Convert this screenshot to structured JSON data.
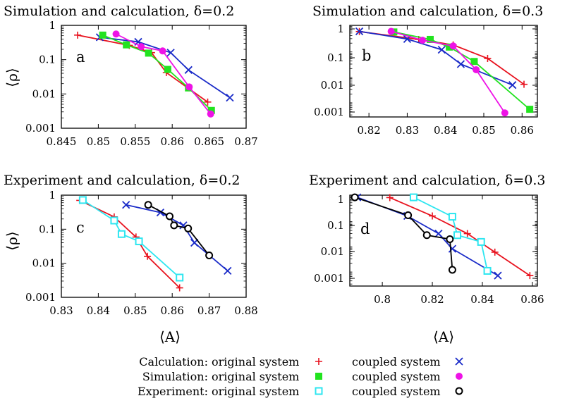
{
  "colors": {
    "calc_original": "#e8121e",
    "calc_coupled": "#1a2bc8",
    "sim_original": "#22e31f",
    "sim_coupled": "#ee12e6",
    "exp_original": "#2ee6f0",
    "exp_coupled": "#000000"
  },
  "legend": {
    "rows": [
      {
        "group": "Calculation:",
        "original": "original system",
        "coupled": "coupled system"
      },
      {
        "group": "Simulation:",
        "original": "original system",
        "coupled": "coupled system"
      },
      {
        "group": "Experiment:",
        "original": "original system",
        "coupled": "coupled system"
      }
    ]
  },
  "chart_data": [
    {
      "type": "line",
      "panel": "a",
      "title": "Simulation and calculation, δ=0.2",
      "xlabel": "",
      "ylabel": "⟨ρ⟩",
      "xlim": [
        0.845,
        0.87
      ],
      "ylim": [
        0.001,
        1
      ],
      "ylog": true,
      "xticks": [
        0.845,
        0.85,
        0.855,
        0.86,
        0.865,
        0.87
      ],
      "xticklabels": [
        "0.845",
        "0.85",
        "0.855",
        "0.86",
        "0.865",
        "0.87"
      ],
      "yticks": [
        0.001,
        0.01,
        0.1,
        1
      ],
      "yticklabels": [
        "0.001",
        "0.01",
        "0.1",
        "1"
      ],
      "series": [
        {
          "key": "calc_original",
          "marker": "plus",
          "x": [
            0.8472,
            0.8542,
            0.8572,
            0.8592,
            0.8648
          ],
          "y": [
            0.52,
            0.26,
            0.16,
            0.042,
            0.0058
          ]
        },
        {
          "key": "calc_coupled",
          "marker": "x",
          "x": [
            0.8502,
            0.8554,
            0.8598,
            0.8622,
            0.8678
          ],
          "y": [
            0.45,
            0.33,
            0.16,
            0.05,
            0.0078
          ]
        },
        {
          "key": "sim_original",
          "marker": "square",
          "x": [
            0.8506,
            0.8538,
            0.8568,
            0.8594,
            0.8622,
            0.8653
          ],
          "y": [
            0.52,
            0.27,
            0.155,
            0.052,
            0.015,
            0.0033
          ]
        },
        {
          "key": "sim_coupled",
          "marker": "circle",
          "x": [
            0.8524,
            0.8558,
            0.8587,
            0.8623,
            0.8652
          ],
          "y": [
            0.56,
            0.24,
            0.18,
            0.016,
            0.0026
          ]
        }
      ]
    },
    {
      "type": "line",
      "panel": "b",
      "title": "Simulation and calculation, δ=0.3",
      "xlabel": "",
      "ylabel": "",
      "xlim": [
        0.815,
        0.864
      ],
      "ylim": [
        0.00025,
        1
      ],
      "ylog": true,
      "xticks": [
        0.82,
        0.83,
        0.84,
        0.85,
        0.86
      ],
      "xticklabels": [
        "0.82",
        "0.83",
        "0.84",
        "0.85",
        "0.86"
      ],
      "yticks": [
        0.001,
        0.01,
        0.1,
        1
      ],
      "yticklabels": [
        "0.001",
        "0.01",
        "0.1",
        "1"
      ],
      "series": [
        {
          "key": "calc_original",
          "marker": "plus",
          "x": [
            0.8175,
            0.833,
            0.842,
            0.851,
            0.8605
          ],
          "y": [
            0.57,
            0.28,
            0.17,
            0.05,
            0.0048
          ]
        },
        {
          "key": "calc_coupled",
          "marker": "x",
          "x": [
            0.8175,
            0.83,
            0.839,
            0.844,
            0.8575
          ],
          "y": [
            0.58,
            0.29,
            0.11,
            0.03,
            0.0045
          ]
        },
        {
          "key": "sim_original",
          "marker": "square",
          "x": [
            0.8265,
            0.836,
            0.841,
            0.8475,
            0.862
          ],
          "y": [
            0.55,
            0.28,
            0.14,
            0.038,
            0.0005
          ]
        },
        {
          "key": "sim_coupled",
          "marker": "circle",
          "x": [
            0.8258,
            0.834,
            0.842,
            0.848,
            0.8555
          ],
          "y": [
            0.58,
            0.26,
            0.155,
            0.018,
            0.00036
          ]
        }
      ]
    },
    {
      "type": "line",
      "panel": "c",
      "title": "Experiment and calculation, δ=0.2",
      "xlabel": "⟨A⟩",
      "ylabel": "⟨ρ⟩",
      "xlim": [
        0.83,
        0.88
      ],
      "ylim": [
        0.001,
        1
      ],
      "ylog": true,
      "xticks": [
        0.83,
        0.84,
        0.85,
        0.86,
        0.87,
        0.88
      ],
      "xticklabels": [
        "0.83",
        "0.84",
        "0.85",
        "0.86",
        "0.87",
        "0.88"
      ],
      "yticks": [
        0.001,
        0.01,
        0.1,
        1
      ],
      "yticklabels": [
        "0.001",
        "0.01",
        "0.1",
        "1"
      ],
      "series": [
        {
          "key": "calc_original",
          "marker": "plus",
          "x": [
            0.835,
            0.8443,
            0.8502,
            0.8533,
            0.862
          ],
          "y": [
            0.7,
            0.23,
            0.059,
            0.016,
            0.0019
          ]
        },
        {
          "key": "calc_coupled",
          "marker": "x",
          "x": [
            0.8475,
            0.8568,
            0.863,
            0.866,
            0.875
          ],
          "y": [
            0.52,
            0.31,
            0.13,
            0.04,
            0.006
          ]
        },
        {
          "key": "exp_original",
          "marker": "open-square",
          "x": [
            0.8358,
            0.8443,
            0.8463,
            0.851,
            0.862
          ],
          "y": [
            0.72,
            0.18,
            0.072,
            0.044,
            0.0038
          ]
        },
        {
          "key": "exp_coupled",
          "marker": "open-circle",
          "x": [
            0.8535,
            0.8593,
            0.8605,
            0.8643,
            0.87
          ],
          "y": [
            0.52,
            0.24,
            0.13,
            0.105,
            0.017
          ]
        }
      ]
    },
    {
      "type": "line",
      "panel": "d",
      "title": "Experiment and calculation, δ=0.3",
      "xlabel": "⟨A⟩",
      "ylabel": "",
      "xlim": [
        0.787,
        0.862
      ],
      "ylim": [
        0.00025,
        1
      ],
      "ylog": true,
      "xticks": [
        0.8,
        0.82,
        0.84,
        0.86
      ],
      "xticklabels": [
        "0.8",
        "0.82",
        "0.84",
        "0.86"
      ],
      "yticks": [
        0.001,
        0.01,
        0.1,
        1
      ],
      "yticklabels": [
        "0.001",
        "0.01",
        "0.1",
        "1"
      ],
      "series": [
        {
          "key": "calc_original",
          "marker": "plus",
          "x": [
            0.803,
            0.82,
            0.834,
            0.845,
            0.859
          ],
          "y": [
            0.8,
            0.15,
            0.03,
            0.0055,
            0.00065
          ]
        },
        {
          "key": "calc_coupled",
          "marker": "x",
          "x": [
            0.79,
            0.81,
            0.8225,
            0.828,
            0.8462
          ],
          "y": [
            0.82,
            0.15,
            0.03,
            0.0075,
            0.00065
          ]
        },
        {
          "key": "exp_original",
          "marker": "open-square",
          "x": [
            0.8125,
            0.828,
            0.83,
            0.8395,
            0.842
          ],
          "y": [
            0.82,
            0.14,
            0.026,
            0.014,
            0.001
          ]
        },
        {
          "key": "exp_coupled",
          "marker": "open-circle",
          "x": [
            0.789,
            0.8103,
            0.8178,
            0.827,
            0.828
          ],
          "y": [
            0.82,
            0.16,
            0.026,
            0.018,
            0.0011
          ]
        }
      ]
    }
  ]
}
